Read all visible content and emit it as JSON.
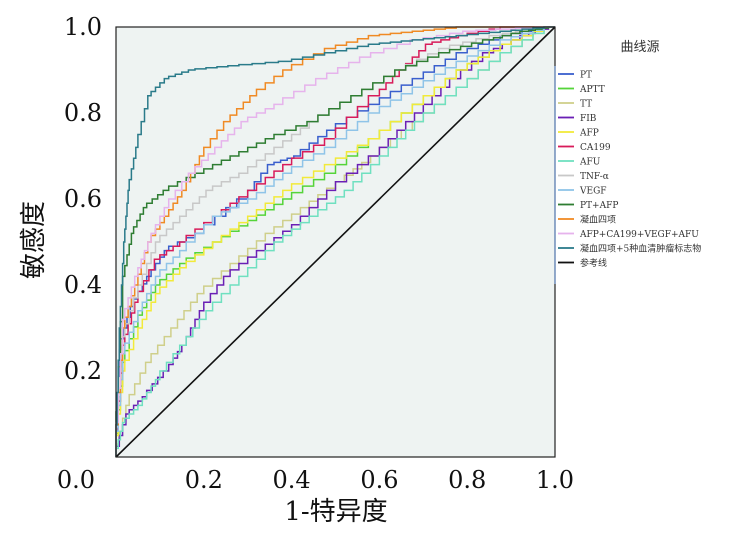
{
  "chart_data": {
    "type": "line",
    "title": "",
    "xlabel": "1-特异度",
    "ylabel": "敏感度",
    "xlim": [
      0,
      1
    ],
    "ylim": [
      0,
      1
    ],
    "x_ticks": [
      "0.0",
      "0.2",
      "0.4",
      "0.6",
      "0.8",
      "1.0"
    ],
    "y_ticks": [
      "0.0",
      "0.2",
      "0.4",
      "0.6",
      "0.8",
      "1.0"
    ],
    "grid": false,
    "plot_background": "#eef3f2",
    "legend": {
      "title": "曲线源",
      "placement": "right"
    },
    "series": [
      {
        "name": "PT",
        "color": "#3a5fcd",
        "points": [
          [
            0,
            0
          ],
          [
            0.01,
            0.25
          ],
          [
            0.04,
            0.35
          ],
          [
            0.08,
            0.42
          ],
          [
            0.12,
            0.48
          ],
          [
            0.2,
            0.52
          ],
          [
            0.3,
            0.6
          ],
          [
            0.36,
            0.68
          ],
          [
            0.42,
            0.7
          ],
          [
            0.5,
            0.76
          ],
          [
            0.6,
            0.82
          ],
          [
            0.7,
            0.88
          ],
          [
            0.8,
            0.94
          ],
          [
            0.9,
            0.98
          ],
          [
            1,
            1
          ]
        ]
      },
      {
        "name": "APTT",
        "color": "#55d43a",
        "points": [
          [
            0,
            0
          ],
          [
            0.02,
            0.22
          ],
          [
            0.06,
            0.33
          ],
          [
            0.1,
            0.4
          ],
          [
            0.16,
            0.45
          ],
          [
            0.24,
            0.5
          ],
          [
            0.32,
            0.55
          ],
          [
            0.4,
            0.6
          ],
          [
            0.5,
            0.66
          ],
          [
            0.6,
            0.74
          ],
          [
            0.7,
            0.82
          ],
          [
            0.8,
            0.9
          ],
          [
            0.9,
            0.96
          ],
          [
            1,
            1
          ]
        ]
      },
      {
        "name": "TT",
        "color": "#cfcf8a",
        "points": [
          [
            0,
            0
          ],
          [
            0.03,
            0.12
          ],
          [
            0.08,
            0.22
          ],
          [
            0.14,
            0.3
          ],
          [
            0.2,
            0.38
          ],
          [
            0.28,
            0.45
          ],
          [
            0.36,
            0.52
          ],
          [
            0.44,
            0.58
          ],
          [
            0.52,
            0.64
          ],
          [
            0.6,
            0.7
          ],
          [
            0.7,
            0.78
          ],
          [
            0.8,
            0.86
          ],
          [
            0.9,
            0.94
          ],
          [
            1,
            1
          ]
        ]
      },
      {
        "name": "FIB",
        "color": "#6a1fb5",
        "points": [
          [
            0,
            0
          ],
          [
            0.03,
            0.1
          ],
          [
            0.07,
            0.14
          ],
          [
            0.12,
            0.2
          ],
          [
            0.16,
            0.26
          ],
          [
            0.2,
            0.34
          ],
          [
            0.26,
            0.42
          ],
          [
            0.34,
            0.48
          ],
          [
            0.42,
            0.54
          ],
          [
            0.5,
            0.62
          ],
          [
            0.6,
            0.7
          ],
          [
            0.68,
            0.78
          ],
          [
            0.76,
            0.86
          ],
          [
            0.86,
            0.94
          ],
          [
            0.94,
            0.98
          ],
          [
            1,
            1
          ]
        ]
      },
      {
        "name": "AFP",
        "color": "#f2ea3a",
        "points": [
          [
            0,
            0
          ],
          [
            0.02,
            0.2
          ],
          [
            0.06,
            0.3
          ],
          [
            0.1,
            0.38
          ],
          [
            0.16,
            0.44
          ],
          [
            0.24,
            0.5
          ],
          [
            0.32,
            0.56
          ],
          [
            0.4,
            0.62
          ],
          [
            0.5,
            0.68
          ],
          [
            0.6,
            0.74
          ],
          [
            0.7,
            0.82
          ],
          [
            0.8,
            0.9
          ],
          [
            0.9,
            0.96
          ],
          [
            1,
            1
          ]
        ]
      },
      {
        "name": "CA199",
        "color": "#d81b5a",
        "points": [
          [
            0,
            0
          ],
          [
            0.02,
            0.26
          ],
          [
            0.05,
            0.36
          ],
          [
            0.1,
            0.46
          ],
          [
            0.16,
            0.5
          ],
          [
            0.24,
            0.56
          ],
          [
            0.32,
            0.62
          ],
          [
            0.4,
            0.68
          ],
          [
            0.5,
            0.74
          ],
          [
            0.6,
            0.84
          ],
          [
            0.66,
            0.9
          ],
          [
            0.72,
            0.96
          ],
          [
            0.8,
            0.98
          ],
          [
            0.9,
            1
          ],
          [
            1,
            1
          ]
        ]
      },
      {
        "name": "AFU",
        "color": "#6fe0c0",
        "points": [
          [
            0,
            0
          ],
          [
            0.02,
            0.08
          ],
          [
            0.06,
            0.12
          ],
          [
            0.1,
            0.18
          ],
          [
            0.16,
            0.26
          ],
          [
            0.22,
            0.34
          ],
          [
            0.3,
            0.42
          ],
          [
            0.38,
            0.5
          ],
          [
            0.46,
            0.56
          ],
          [
            0.54,
            0.62
          ],
          [
            0.62,
            0.7
          ],
          [
            0.7,
            0.78
          ],
          [
            0.8,
            0.86
          ],
          [
            0.9,
            0.94
          ],
          [
            1,
            1
          ]
        ]
      },
      {
        "name": "TNF-α",
        "color": "#c8c8c8",
        "points": [
          [
            0,
            0
          ],
          [
            0.02,
            0.28
          ],
          [
            0.06,
            0.4
          ],
          [
            0.1,
            0.5
          ],
          [
            0.16,
            0.56
          ],
          [
            0.22,
            0.62
          ],
          [
            0.3,
            0.66
          ],
          [
            0.38,
            0.72
          ],
          [
            0.46,
            0.78
          ],
          [
            0.56,
            0.84
          ],
          [
            0.66,
            0.9
          ],
          [
            0.76,
            0.95
          ],
          [
            0.88,
            0.98
          ],
          [
            1,
            1
          ]
        ]
      },
      {
        "name": "VEGF",
        "color": "#8fc4e8",
        "points": [
          [
            0,
            0
          ],
          [
            0.02,
            0.24
          ],
          [
            0.06,
            0.34
          ],
          [
            0.1,
            0.42
          ],
          [
            0.16,
            0.48
          ],
          [
            0.24,
            0.56
          ],
          [
            0.32,
            0.6
          ],
          [
            0.4,
            0.66
          ],
          [
            0.5,
            0.72
          ],
          [
            0.6,
            0.8
          ],
          [
            0.7,
            0.86
          ],
          [
            0.8,
            0.92
          ],
          [
            0.9,
            0.97
          ],
          [
            1,
            1
          ]
        ]
      },
      {
        "name": "PT+AFP",
        "color": "#2e7d32",
        "points": [
          [
            0,
            0
          ],
          [
            0.02,
            0.42
          ],
          [
            0.04,
            0.52
          ],
          [
            0.07,
            0.58
          ],
          [
            0.12,
            0.62
          ],
          [
            0.2,
            0.66
          ],
          [
            0.28,
            0.7
          ],
          [
            0.36,
            0.74
          ],
          [
            0.46,
            0.78
          ],
          [
            0.56,
            0.84
          ],
          [
            0.66,
            0.9
          ],
          [
            0.76,
            0.94
          ],
          [
            0.86,
            0.97
          ],
          [
            0.94,
            0.99
          ],
          [
            1,
            1
          ]
        ]
      },
      {
        "name": "凝血四项",
        "color": "#f08a24",
        "points": [
          [
            0,
            0
          ],
          [
            0.02,
            0.3
          ],
          [
            0.05,
            0.4
          ],
          [
            0.08,
            0.5
          ],
          [
            0.12,
            0.56
          ],
          [
            0.16,
            0.62
          ],
          [
            0.2,
            0.7
          ],
          [
            0.26,
            0.78
          ],
          [
            0.32,
            0.84
          ],
          [
            0.4,
            0.9
          ],
          [
            0.5,
            0.95
          ],
          [
            0.6,
            0.98
          ],
          [
            0.7,
            0.99
          ],
          [
            0.8,
            1
          ],
          [
            1,
            1
          ]
        ]
      },
      {
        "name": "AFP+CA199+VEGF+AFU",
        "color": "#e6b3ec",
        "points": [
          [
            0,
            0
          ],
          [
            0.02,
            0.32
          ],
          [
            0.05,
            0.42
          ],
          [
            0.08,
            0.5
          ],
          [
            0.12,
            0.58
          ],
          [
            0.18,
            0.66
          ],
          [
            0.24,
            0.72
          ],
          [
            0.3,
            0.78
          ],
          [
            0.38,
            0.82
          ],
          [
            0.48,
            0.88
          ],
          [
            0.58,
            0.93
          ],
          [
            0.7,
            0.97
          ],
          [
            0.82,
            0.99
          ],
          [
            1,
            1
          ]
        ]
      },
      {
        "name": "凝血四项+5种血清肿瘤标志物",
        "color": "#2a7b8a",
        "points": [
          [
            0,
            0
          ],
          [
            0.01,
            0.3
          ],
          [
            0.02,
            0.5
          ],
          [
            0.03,
            0.62
          ],
          [
            0.05,
            0.72
          ],
          [
            0.08,
            0.84
          ],
          [
            0.12,
            0.88
          ],
          [
            0.18,
            0.9
          ],
          [
            0.28,
            0.91
          ],
          [
            0.4,
            0.92
          ],
          [
            0.5,
            0.94
          ],
          [
            0.6,
            0.96
          ],
          [
            0.7,
            0.97
          ],
          [
            0.8,
            0.98
          ],
          [
            0.9,
            0.99
          ],
          [
            1,
            1
          ]
        ]
      },
      {
        "name": "参考线",
        "color": "#111111",
        "points": [
          [
            0,
            0
          ],
          [
            1,
            1
          ]
        ]
      }
    ]
  }
}
